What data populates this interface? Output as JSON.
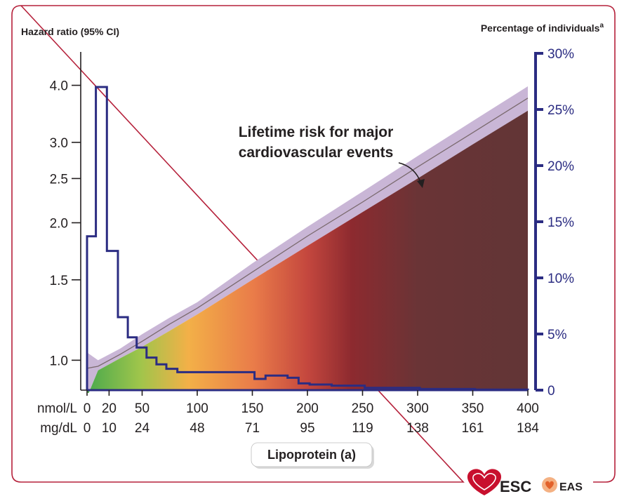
{
  "chart_data": {
    "type": "line",
    "left_axis_title": "Hazard ratio (95% CI)",
    "right_axis_title": "Percentage of individuals",
    "right_axis_title_superscript": "a",
    "annotation_line1": "Lifetime risk for major",
    "annotation_line2": "cardiovascular events",
    "xlabel": "Lipoprotein (a)",
    "x_unit_top": "nmol/L",
    "x_unit_bottom": "mg/dL",
    "x_ticks": [
      {
        "nmol": 0,
        "label_top": "0",
        "label_bottom": "0"
      },
      {
        "nmol": 20,
        "label_top": "20",
        "label_bottom": "10"
      },
      {
        "nmol": 50,
        "label_top": "50",
        "label_bottom": "24"
      },
      {
        "nmol": 100,
        "label_top": "100",
        "label_bottom": "48"
      },
      {
        "nmol": 150,
        "label_top": "150",
        "label_bottom": "71"
      },
      {
        "nmol": 200,
        "label_top": "200",
        "label_bottom": "95"
      },
      {
        "nmol": 250,
        "label_top": "250",
        "label_bottom": "119"
      },
      {
        "nmol": 300,
        "label_top": "300",
        "label_bottom": "138"
      },
      {
        "nmol": 350,
        "label_top": "350",
        "label_bottom": "161"
      },
      {
        "nmol": 400,
        "label_top": "400",
        "label_bottom": "184"
      }
    ],
    "xlim": [
      0,
      400
    ],
    "left_ticks": [
      {
        "value": 1.0,
        "label": "1.0"
      },
      {
        "value": 1.5,
        "label": "1.5"
      },
      {
        "value": 2.0,
        "label": "2.0"
      },
      {
        "value": 2.5,
        "label": "2.5"
      },
      {
        "value": 3.0,
        "label": "3.0"
      },
      {
        "value": 4.0,
        "label": "4.0"
      }
    ],
    "left_scale": "log",
    "left_lim": [
      0.86,
      4.7
    ],
    "right_ticks": [
      {
        "value": 0,
        "label": "0"
      },
      {
        "value": 5,
        "label": "5%"
      },
      {
        "value": 10,
        "label": "10%"
      },
      {
        "value": 15,
        "label": "15%"
      },
      {
        "value": 20,
        "label": "20%"
      },
      {
        "value": 25,
        "label": "25%"
      },
      {
        "value": 30,
        "label": "30%"
      }
    ],
    "right_lim": [
      0,
      30
    ],
    "series": [
      {
        "kind": "hazard_ratio",
        "x": [
          0,
          10,
          30,
          50,
          75,
          100,
          150,
          200,
          250,
          300,
          350,
          400
        ],
        "y": [
          0.96,
          0.97,
          1.03,
          1.1,
          1.2,
          1.3,
          1.56,
          1.87,
          2.22,
          2.65,
          3.15,
          3.75
        ],
        "ci_low": [
          0.83,
          0.95,
          1.01,
          1.07,
          1.16,
          1.26,
          1.5,
          1.78,
          2.11,
          2.5,
          2.97,
          3.52
        ],
        "ci_high": [
          1.04,
          1.0,
          1.06,
          1.14,
          1.24,
          1.34,
          1.63,
          1.96,
          2.34,
          2.8,
          3.34,
          3.98
        ],
        "fill_color_stops": [
          "#4aa94d",
          "#9fc54b",
          "#f3b048",
          "#e97b49",
          "#c4473e",
          "#8d2a2f",
          "#6a3436",
          "#623536"
        ]
      },
      {
        "kind": "distribution_histogram",
        "color": "#2b2c82",
        "bins": [
          {
            "x0": 0,
            "x1": 8,
            "pct": 13.7
          },
          {
            "x0": 8,
            "x1": 18,
            "pct": 27.0
          },
          {
            "x0": 18,
            "x1": 28,
            "pct": 12.4
          },
          {
            "x0": 28,
            "x1": 37,
            "pct": 6.5
          },
          {
            "x0": 37,
            "x1": 45,
            "pct": 4.7
          },
          {
            "x0": 45,
            "x1": 54,
            "pct": 3.8
          },
          {
            "x0": 54,
            "x1": 63,
            "pct": 2.9
          },
          {
            "x0": 63,
            "x1": 72,
            "pct": 2.3
          },
          {
            "x0": 72,
            "x1": 82,
            "pct": 1.9
          },
          {
            "x0": 82,
            "x1": 152,
            "pct": 1.6
          },
          {
            "x0": 152,
            "x1": 162,
            "pct": 1.0
          },
          {
            "x0": 162,
            "x1": 182,
            "pct": 1.3
          },
          {
            "x0": 182,
            "x1": 192,
            "pct": 1.1
          },
          {
            "x0": 192,
            "x1": 202,
            "pct": 0.6
          },
          {
            "x0": 202,
            "x1": 222,
            "pct": 0.5
          },
          {
            "x0": 222,
            "x1": 252,
            "pct": 0.4
          },
          {
            "x0": 252,
            "x1": 302,
            "pct": 0.2
          },
          {
            "x0": 302,
            "x1": 352,
            "pct": 0.1
          },
          {
            "x0": 352,
            "x1": 400,
            "pct": 0.05
          }
        ]
      }
    ],
    "grid": false,
    "legend": "none"
  },
  "colors": {
    "frame": "#b5203a",
    "axis_dark": "#231f20",
    "axis_right": "#2b2c82",
    "ci_band": "#c9b6d6",
    "hr_line": "#7a6a6e"
  },
  "logos": {
    "esc_text": "ESC",
    "eas_text": "EAS"
  }
}
